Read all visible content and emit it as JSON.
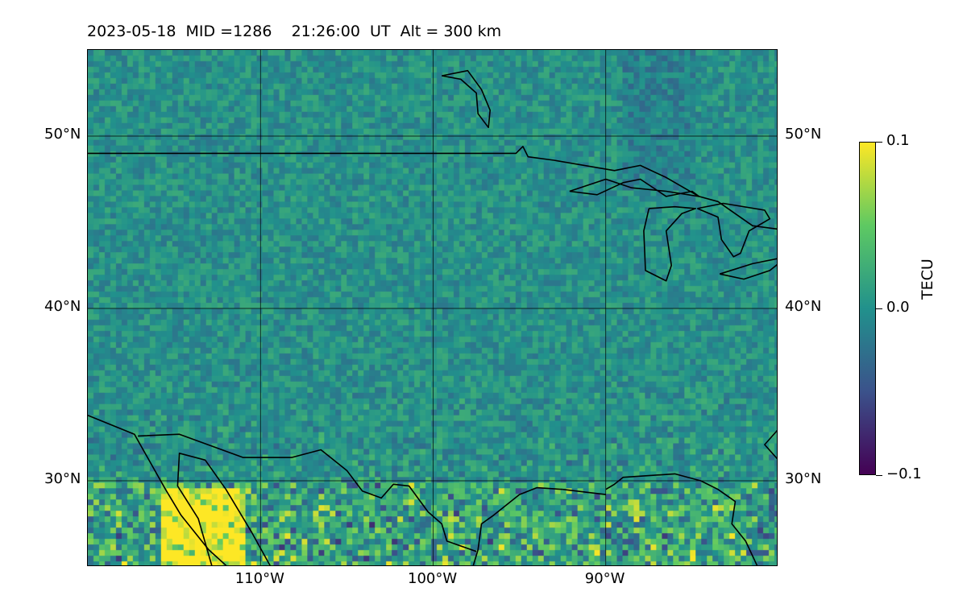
{
  "title": "2023-05-18  MID =1286    21:26:00  UT  Alt = 300 km",
  "map": {
    "lon_range": [
      -120,
      -80
    ],
    "lat_range": [
      25,
      55
    ],
    "grid": true,
    "lon_ticks": [
      {
        "value": -110,
        "label": "110°W"
      },
      {
        "value": -100,
        "label": "100°W"
      },
      {
        "value": -90,
        "label": "90°W"
      }
    ],
    "lat_ticks": [
      {
        "value": 50,
        "label": "50°N"
      },
      {
        "value": 40,
        "label": "40°N"
      },
      {
        "value": 30,
        "label": "30°N"
      }
    ],
    "field": "TEC perturbation heatmap (viridis)",
    "coastlines": [
      [
        [
          -120,
          33.8
        ],
        [
          -117.3,
          32.7
        ],
        [
          -115.5,
          29.5
        ],
        [
          -114.6,
          28
        ],
        [
          -113,
          26
        ],
        [
          -111.9,
          25
        ]
      ],
      [
        [
          -112.8,
          25
        ],
        [
          -113.6,
          27.8
        ],
        [
          -114.8,
          29.7
        ],
        [
          -114.7,
          31.6
        ],
        [
          -113.2,
          31.2
        ],
        [
          -112,
          29.5
        ],
        [
          -110.5,
          27
        ],
        [
          -109.4,
          25
        ]
      ],
      [
        [
          -92.5,
          29.5
        ],
        [
          -94,
          29.6
        ],
        [
          -95,
          29.2
        ],
        [
          -96.5,
          28
        ],
        [
          -97.2,
          27.5
        ],
        [
          -97.4,
          26
        ],
        [
          -97.7,
          25
        ]
      ],
      [
        [
          -90,
          29.5
        ],
        [
          -89.5,
          29.8
        ],
        [
          -89,
          30.2
        ],
        [
          -86,
          30.4
        ],
        [
          -84.5,
          30
        ],
        [
          -83.5,
          29.5
        ],
        [
          -82.5,
          28.8
        ],
        [
          -82.7,
          27.5
        ],
        [
          -81.9,
          26.5
        ],
        [
          -81.2,
          25
        ]
      ],
      [
        [
          -80,
          31.2
        ],
        [
          -80.8,
          32.1
        ],
        [
          -80,
          33
        ]
      ],
      [
        [
          -92.5,
          29.5
        ],
        [
          -90,
          29.2
        ]
      ]
    ],
    "borders": [
      [
        [
          -120,
          49
        ],
        [
          -104,
          49
        ],
        [
          -95.2,
          49
        ],
        [
          -94.8,
          49.4
        ],
        [
          -94.5,
          48.8
        ],
        [
          -93,
          48.6
        ],
        [
          -89.5,
          48
        ],
        [
          -88,
          48.3
        ],
        [
          -86.5,
          47.6
        ],
        [
          -84.6,
          46.5
        ],
        [
          -83.5,
          46.2
        ],
        [
          -82.5,
          45.5
        ],
        [
          -81.5,
          44.8
        ],
        [
          -80,
          44.6
        ]
      ],
      [
        [
          -117.1,
          32.6
        ],
        [
          -114.7,
          32.7
        ],
        [
          -111,
          31.35
        ],
        [
          -108.2,
          31.35
        ],
        [
          -106.5,
          31.8
        ],
        [
          -105,
          30.6
        ],
        [
          -104.1,
          29.4
        ],
        [
          -103,
          29
        ],
        [
          -102.3,
          29.8
        ],
        [
          -101.4,
          29.7
        ],
        [
          -100.3,
          28.2
        ],
        [
          -99.5,
          27.5
        ],
        [
          -99.2,
          26.5
        ],
        [
          -97.5,
          25.9
        ]
      ]
    ],
    "lakes": [
      [
        [
          -92.1,
          46.8
        ],
        [
          -90.5,
          46.6
        ],
        [
          -89,
          47.3
        ],
        [
          -88,
          47.5
        ],
        [
          -86.5,
          46.5
        ],
        [
          -85,
          46.8
        ],
        [
          -84.6,
          46.5
        ],
        [
          -86.5,
          46.8
        ],
        [
          -88.5,
          47
        ],
        [
          -90,
          47.5
        ],
        [
          -91.5,
          47
        ],
        [
          -92.1,
          46.8
        ]
      ],
      [
        [
          -87.5,
          45.8
        ],
        [
          -87.8,
          44.5
        ],
        [
          -87.7,
          42.2
        ],
        [
          -86.5,
          41.6
        ],
        [
          -86.2,
          42.5
        ],
        [
          -86.5,
          44.5
        ],
        [
          -85.6,
          45.5
        ],
        [
          -84.8,
          45.8
        ],
        [
          -86,
          45.9
        ],
        [
          -87.5,
          45.8
        ]
      ],
      [
        [
          -84.7,
          45.8
        ],
        [
          -83.5,
          45.3
        ],
        [
          -83.3,
          44
        ],
        [
          -82.6,
          43
        ],
        [
          -82.2,
          43.2
        ],
        [
          -81.7,
          44.5
        ],
        [
          -80.5,
          45.2
        ],
        [
          -80.8,
          45.7
        ],
        [
          -83.2,
          46.1
        ],
        [
          -84.7,
          45.8
        ]
      ],
      [
        [
          -83.4,
          42
        ],
        [
          -81.5,
          42.6
        ],
        [
          -79.5,
          43
        ],
        [
          -80.5,
          42.2
        ],
        [
          -82,
          41.7
        ],
        [
          -83.4,
          42
        ]
      ],
      [
        [
          -99.5,
          53.5
        ],
        [
          -98.4,
          53.3
        ],
        [
          -97.5,
          52.5
        ],
        [
          -97.4,
          51.3
        ],
        [
          -96.8,
          50.5
        ],
        [
          -96.7,
          51.5
        ],
        [
          -97.2,
          52.7
        ],
        [
          -98,
          53.8
        ],
        [
          -99.5,
          53.5
        ]
      ]
    ]
  },
  "colorbar": {
    "label": "TECU",
    "min": -0.1,
    "max": 0.1,
    "ticks": [
      {
        "value": 0.1,
        "label": "0.1"
      },
      {
        "value": 0.0,
        "label": "0.0"
      },
      {
        "value": -0.1,
        "label": "−0.1"
      }
    ],
    "colormap": "viridis"
  }
}
